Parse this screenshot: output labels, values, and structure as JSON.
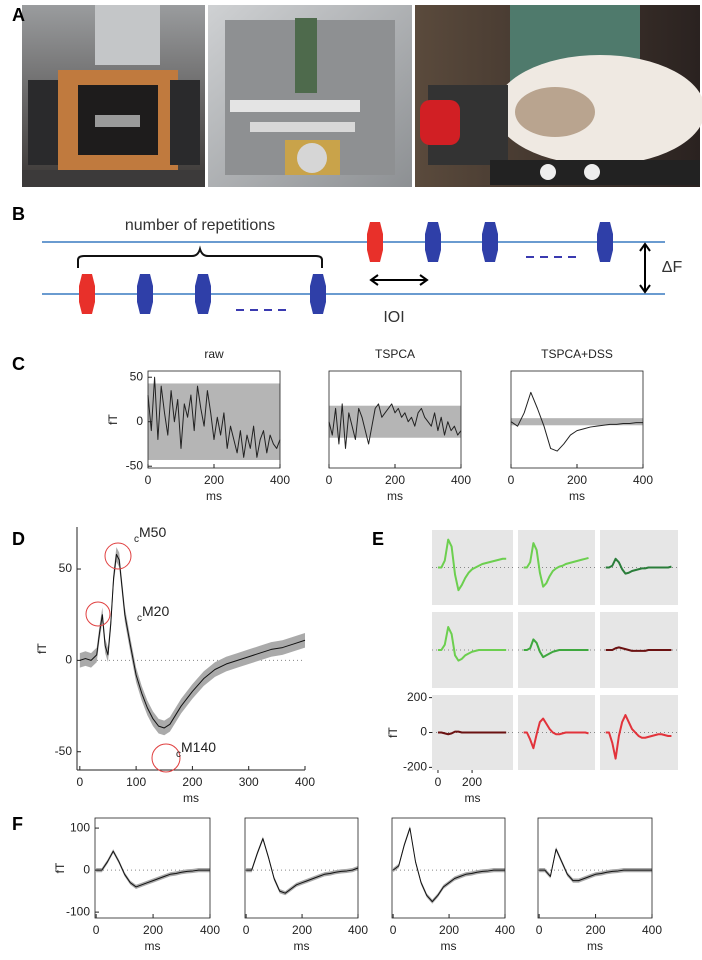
{
  "panel_labels": [
    "A",
    "B",
    "C",
    "D",
    "E",
    "F"
  ],
  "diagram": {
    "bracket_label": "number of repetitions",
    "ioi_label": "IOI",
    "delta_label": "ΔF"
  },
  "chart_data": [
    {
      "type": "line",
      "title": "raw",
      "xlabel": "ms",
      "ylabel": "fT",
      "color": "#222",
      "x": [
        0,
        10,
        20,
        30,
        40,
        50,
        60,
        70,
        80,
        90,
        100,
        110,
        120,
        130,
        140,
        150,
        160,
        170,
        180,
        190,
        200,
        210,
        220,
        230,
        240,
        250,
        260,
        270,
        280,
        290,
        300,
        310,
        320,
        330,
        340,
        350,
        360,
        370,
        380,
        390,
        400
      ],
      "values": [
        30,
        -10,
        50,
        -20,
        40,
        10,
        -15,
        35,
        0,
        25,
        -30,
        20,
        5,
        30,
        -10,
        40,
        15,
        -5,
        35,
        10,
        -20,
        5,
        -15,
        10,
        -30,
        -5,
        -20,
        -35,
        -10,
        -40,
        -15,
        -30,
        -5,
        -40,
        -20,
        -10,
        -35,
        -15,
        -25,
        -30,
        -20
      ],
      "band": [
        -43,
        43
      ],
      "xlim": [
        0,
        400
      ],
      "ylim": [
        -52,
        57
      ],
      "xticks": [
        0,
        200,
        400
      ],
      "yticks": [
        -50,
        0,
        50
      ]
    },
    {
      "type": "line",
      "title": "TSPCA",
      "xlabel": "ms",
      "color": "#222",
      "x": [
        0,
        10,
        20,
        30,
        40,
        50,
        60,
        70,
        80,
        90,
        100,
        110,
        120,
        130,
        140,
        150,
        160,
        170,
        180,
        190,
        200,
        210,
        220,
        230,
        240,
        250,
        260,
        270,
        280,
        290,
        300,
        310,
        320,
        330,
        340,
        350,
        360,
        370,
        380,
        390,
        400
      ],
      "values": [
        0,
        -15,
        15,
        -25,
        20,
        -30,
        10,
        -5,
        -20,
        15,
        5,
        -10,
        -25,
        -5,
        15,
        20,
        5,
        10,
        15,
        20,
        10,
        15,
        5,
        10,
        0,
        5,
        -5,
        10,
        15,
        5,
        0,
        -5,
        10,
        -10,
        5,
        -15,
        0,
        -10,
        -5,
        -15,
        -10
      ],
      "band": [
        -18,
        18
      ],
      "xlim": [
        0,
        400
      ],
      "ylim": [
        -52,
        57
      ],
      "xticks": [
        0,
        200,
        400
      ]
    },
    {
      "type": "line",
      "title": "TSPCA+DSS",
      "xlabel": "ms",
      "color": "#222",
      "x": [
        0,
        20,
        40,
        60,
        80,
        100,
        120,
        140,
        160,
        180,
        200,
        220,
        240,
        260,
        280,
        300,
        320,
        340,
        360,
        380,
        400
      ],
      "values": [
        0,
        -5,
        10,
        33,
        15,
        -5,
        -30,
        -33,
        -25,
        -15,
        -10,
        -8,
        -6,
        -5,
        -4,
        -3,
        -3,
        -2,
        -2,
        -1,
        -1
      ],
      "band": [
        -4,
        4
      ],
      "xlim": [
        0,
        400
      ],
      "ylim": [
        -52,
        57
      ],
      "xticks": [
        0,
        200,
        400
      ]
    },
    {
      "type": "line",
      "xlabel": "ms",
      "ylabel": "fT",
      "color": "#111",
      "x": [
        0,
        10,
        20,
        30,
        35,
        40,
        45,
        50,
        55,
        60,
        65,
        70,
        75,
        80,
        90,
        100,
        110,
        120,
        130,
        140,
        150,
        160,
        170,
        180,
        200,
        220,
        240,
        260,
        280,
        300,
        320,
        340,
        360,
        380,
        400
      ],
      "values": [
        0,
        1,
        0,
        3,
        15,
        25,
        8,
        3,
        20,
        45,
        58,
        55,
        40,
        25,
        8,
        -8,
        -18,
        -26,
        -32,
        -36,
        -37,
        -35,
        -30,
        -25,
        -17,
        -10,
        -5,
        -2,
        0,
        2,
        4,
        6,
        7,
        9,
        11
      ],
      "error": 4,
      "hline": 0,
      "xlim": [
        -5,
        400
      ],
      "ylim": [
        -60,
        73
      ],
      "xticks": [
        0,
        100,
        200,
        300,
        400
      ],
      "yticks": [
        -50,
        0,
        50
      ],
      "annotations": [
        {
          "sub": "c",
          "text": "M50"
        },
        {
          "sub": "c",
          "text": "M20"
        },
        {
          "sub": "c",
          "text": "M140"
        }
      ]
    },
    {
      "type": "line",
      "color": "#6ccf4f",
      "hline": 0,
      "xlim": [
        -35,
        440
      ],
      "ylim": [
        -215,
        215
      ],
      "x": [
        0,
        20,
        40,
        60,
        80,
        100,
        120,
        140,
        160,
        180,
        200,
        220,
        240,
        260,
        280,
        300,
        320,
        340,
        360,
        380,
        400
      ],
      "values": [
        0,
        0,
        40,
        160,
        120,
        -40,
        -130,
        -100,
        -60,
        -30,
        -10,
        0,
        10,
        20,
        25,
        30,
        35,
        40,
        45,
        50,
        50
      ]
    },
    {
      "type": "line",
      "color": "#6ccf4f",
      "hline": 0,
      "xlim": [
        -35,
        440
      ],
      "ylim": [
        -215,
        215
      ],
      "x": [
        0,
        20,
        40,
        60,
        80,
        100,
        120,
        140,
        160,
        180,
        200,
        220,
        240,
        260,
        280,
        300,
        320,
        340,
        360,
        380,
        400
      ],
      "values": [
        0,
        0,
        30,
        140,
        100,
        -30,
        -110,
        -90,
        -50,
        -20,
        -5,
        5,
        10,
        20,
        25,
        30,
        35,
        40,
        45,
        50,
        55
      ]
    },
    {
      "type": "line",
      "color": "#2a7d3a",
      "hline": 0,
      "xlim": [
        -35,
        440
      ],
      "ylim": [
        -215,
        215
      ],
      "x": [
        0,
        20,
        40,
        60,
        80,
        100,
        120,
        140,
        160,
        180,
        200,
        220,
        240,
        260,
        280,
        300,
        320,
        340,
        360,
        380,
        400
      ],
      "values": [
        0,
        0,
        10,
        50,
        30,
        -10,
        -35,
        -30,
        -20,
        -15,
        -10,
        -5,
        -5,
        0,
        0,
        0,
        0,
        0,
        0,
        0,
        5
      ]
    },
    {
      "type": "line",
      "color": "#6ccf4f",
      "hline": 0,
      "xlim": [
        -35,
        440
      ],
      "ylim": [
        -215,
        215
      ],
      "x": [
        0,
        20,
        40,
        60,
        80,
        100,
        120,
        140,
        160,
        180,
        200,
        220,
        240,
        260,
        280,
        300,
        320,
        340,
        360,
        380,
        400
      ],
      "values": [
        0,
        0,
        30,
        130,
        90,
        -30,
        -60,
        -50,
        -30,
        -20,
        -10,
        -5,
        0,
        0,
        0,
        0,
        0,
        0,
        0,
        0,
        0
      ]
    },
    {
      "type": "line",
      "color": "#3fa83f",
      "hline": 0,
      "xlim": [
        -35,
        440
      ],
      "ylim": [
        -215,
        215
      ],
      "x": [
        0,
        20,
        40,
        60,
        80,
        100,
        120,
        140,
        160,
        180,
        200,
        220,
        240,
        260,
        280,
        300,
        320,
        340,
        360,
        380,
        400
      ],
      "values": [
        0,
        0,
        10,
        60,
        40,
        -10,
        -40,
        -30,
        -20,
        -10,
        -5,
        0,
        0,
        0,
        0,
        0,
        0,
        0,
        0,
        0,
        0
      ]
    },
    {
      "type": "line",
      "color": "#6b1212",
      "hline": 0,
      "xlim": [
        -35,
        440
      ],
      "ylim": [
        -215,
        215
      ],
      "x": [
        0,
        20,
        40,
        60,
        80,
        100,
        120,
        140,
        160,
        180,
        200,
        220,
        240,
        260,
        280,
        300,
        320,
        340,
        360,
        380,
        400
      ],
      "values": [
        0,
        0,
        0,
        10,
        15,
        10,
        5,
        0,
        -5,
        -5,
        -5,
        -5,
        -5,
        0,
        0,
        0,
        0,
        0,
        0,
        0,
        0
      ]
    },
    {
      "type": "line",
      "color": "#6b1212",
      "hline": 0,
      "xlim": [
        -35,
        440
      ],
      "ylim": [
        -215,
        215
      ],
      "xlabel": "ms",
      "ylabel": "fT",
      "xticks": [
        0,
        200
      ],
      "yticks": [
        -200,
        0,
        200
      ],
      "x": [
        0,
        20,
        40,
        60,
        80,
        100,
        120,
        140,
        160,
        180,
        200,
        220,
        240,
        260,
        280,
        300,
        320,
        340,
        360,
        380,
        400
      ],
      "values": [
        0,
        0,
        -5,
        -10,
        -5,
        5,
        5,
        0,
        0,
        0,
        0,
        0,
        0,
        0,
        0,
        0,
        0,
        0,
        0,
        0,
        0
      ]
    },
    {
      "type": "line",
      "color": "#e2333b",
      "hline": 0,
      "xlim": [
        -35,
        440
      ],
      "ylim": [
        -215,
        215
      ],
      "x": [
        0,
        20,
        40,
        60,
        80,
        100,
        120,
        140,
        160,
        180,
        200,
        220,
        240,
        260,
        280,
        300,
        320,
        340,
        360,
        380,
        400
      ],
      "values": [
        0,
        0,
        -40,
        -90,
        -10,
        60,
        80,
        50,
        20,
        0,
        -10,
        -10,
        -5,
        0,
        0,
        0,
        0,
        0,
        0,
        0,
        -5
      ]
    },
    {
      "type": "line",
      "color": "#e2333b",
      "hline": 0,
      "xlim": [
        -35,
        440
      ],
      "ylim": [
        -215,
        215
      ],
      "x": [
        0,
        20,
        40,
        60,
        80,
        100,
        120,
        140,
        160,
        180,
        200,
        220,
        240,
        260,
        280,
        300,
        320,
        340,
        360,
        380,
        400
      ],
      "values": [
        0,
        0,
        -60,
        -150,
        -20,
        60,
        100,
        60,
        20,
        0,
        -20,
        -30,
        -30,
        -25,
        -20,
        -15,
        -10,
        -10,
        -15,
        -20,
        -20
      ]
    },
    {
      "type": "line",
      "color": "#111",
      "xlabel": "ms",
      "ylabel": "fT",
      "error": 5,
      "hline": 0,
      "x": [
        0,
        20,
        40,
        60,
        80,
        100,
        120,
        140,
        160,
        180,
        200,
        220,
        240,
        260,
        280,
        300,
        320,
        340,
        360,
        380,
        400
      ],
      "values": [
        0,
        0,
        20,
        45,
        20,
        -10,
        -30,
        -40,
        -35,
        -30,
        -25,
        -20,
        -15,
        -10,
        -8,
        -5,
        -3,
        -2,
        0,
        0,
        0
      ],
      "xlim": [
        -4,
        400
      ],
      "ylim": [
        -114,
        124
      ],
      "xticks": [
        0,
        200,
        400
      ],
      "yticks": [
        -100,
        0,
        100
      ]
    },
    {
      "type": "line",
      "color": "#111",
      "xlabel": "ms",
      "error": 5,
      "hline": 0,
      "x": [
        0,
        20,
        40,
        60,
        80,
        100,
        120,
        140,
        160,
        180,
        200,
        220,
        240,
        260,
        280,
        300,
        320,
        340,
        360,
        380,
        400
      ],
      "values": [
        0,
        0,
        40,
        75,
        30,
        -20,
        -50,
        -55,
        -45,
        -35,
        -30,
        -25,
        -20,
        -15,
        -10,
        -8,
        -5,
        -3,
        -2,
        0,
        5
      ],
      "xlim": [
        -4,
        400
      ],
      "ylim": [
        -114,
        124
      ],
      "xticks": [
        0,
        200,
        400
      ]
    },
    {
      "type": "line",
      "color": "#111",
      "xlabel": "ms",
      "error": 5,
      "hline": 0,
      "x": [
        0,
        20,
        40,
        60,
        80,
        100,
        120,
        140,
        160,
        180,
        200,
        220,
        240,
        260,
        280,
        300,
        320,
        340,
        360,
        380,
        400
      ],
      "values": [
        0,
        10,
        60,
        100,
        20,
        -30,
        -60,
        -75,
        -60,
        -40,
        -30,
        -20,
        -15,
        -10,
        -8,
        -5,
        -3,
        -2,
        0,
        0,
        0
      ],
      "xlim": [
        -4,
        400
      ],
      "ylim": [
        -114,
        124
      ],
      "xticks": [
        0,
        200,
        400
      ]
    },
    {
      "type": "line",
      "color": "#111",
      "xlabel": "ms",
      "error": 5,
      "hline": 0,
      "x": [
        0,
        20,
        40,
        60,
        80,
        100,
        120,
        140,
        160,
        180,
        200,
        220,
        240,
        260,
        280,
        300,
        320,
        340,
        360,
        380,
        400
      ],
      "values": [
        0,
        0,
        -15,
        50,
        20,
        -10,
        -25,
        -25,
        -20,
        -15,
        -10,
        -8,
        -5,
        -3,
        -2,
        0,
        0,
        0,
        0,
        0,
        0
      ],
      "xlim": [
        -4,
        400
      ],
      "ylim": [
        -114,
        124
      ],
      "xticks": [
        0,
        200,
        400
      ]
    }
  ]
}
